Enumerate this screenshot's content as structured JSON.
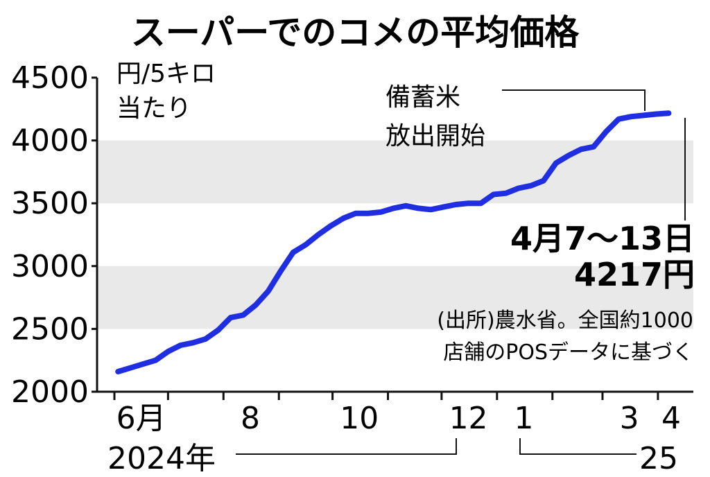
{
  "chart_data": {
    "type": "line",
    "title": "スーパーでのコメの平均価格",
    "unit_line1": "円/5キロ",
    "unit_line2": "当たり",
    "ylim": [
      2000,
      4500
    ],
    "yticks": [
      "4500",
      "4000",
      "3500",
      "3000",
      "2500",
      "2000"
    ],
    "x_ticks": [
      {
        "label": "6月",
        "month": "2024-06"
      },
      {
        "label": "8",
        "month": "2024-08"
      },
      {
        "label": "10",
        "month": "2024-10"
      },
      {
        "label": "12",
        "month": "2024-12"
      },
      {
        "label": "1",
        "month": "2025-01"
      },
      {
        "label": "3",
        "month": "2025-03"
      },
      {
        "label": "4",
        "month": "2025-04"
      }
    ],
    "year_labels": {
      "y2024": "2024年",
      "y2025": "25"
    },
    "grid": "alternating horizontal bands",
    "color": "#1f2ee0",
    "series": [
      {
        "x": [
          "2024-06-03",
          "2024-06-10",
          "2024-06-17",
          "2024-06-24",
          "2024-07-01",
          "2024-07-08",
          "2024-07-15",
          "2024-07-22",
          "2024-07-29",
          "2024-08-05",
          "2024-08-12",
          "2024-08-19",
          "2024-08-26",
          "2024-09-02",
          "2024-09-09",
          "2024-09-16",
          "2024-09-23",
          "2024-09-30",
          "2024-10-07",
          "2024-10-14",
          "2024-10-21",
          "2024-10-28",
          "2024-11-04",
          "2024-11-11",
          "2024-11-18",
          "2024-11-25",
          "2024-12-02",
          "2024-12-09",
          "2024-12-16",
          "2024-12-23",
          "2024-12-30",
          "2025-01-06",
          "2025-01-13",
          "2025-01-20",
          "2025-01-27",
          "2025-02-03",
          "2025-02-10",
          "2025-02-17",
          "2025-02-24",
          "2025-03-03",
          "2025-03-10",
          "2025-03-17",
          "2025-03-24",
          "2025-03-31",
          "2025-04-07"
        ],
        "values": [
          2160,
          2190,
          2220,
          2250,
          2320,
          2370,
          2390,
          2420,
          2490,
          2590,
          2610,
          2690,
          2800,
          2960,
          3110,
          3170,
          3250,
          3320,
          3380,
          3420,
          3420,
          3430,
          3460,
          3480,
          3460,
          3450,
          3470,
          3490,
          3500,
          3500,
          3570,
          3580,
          3620,
          3640,
          3680,
          3820,
          3880,
          3930,
          3950,
          4070,
          4170,
          4190,
          4200,
          4210,
          4217
        ]
      }
    ],
    "annotations": {
      "release_line1": "備蓄米",
      "release_line2": "放出開始",
      "latest_period": "4月7〜13日",
      "latest_value": "4217円",
      "source_line1": "(出所)農水省。全国約1000",
      "source_line2": "店舗のPOSデータに基づく"
    }
  }
}
